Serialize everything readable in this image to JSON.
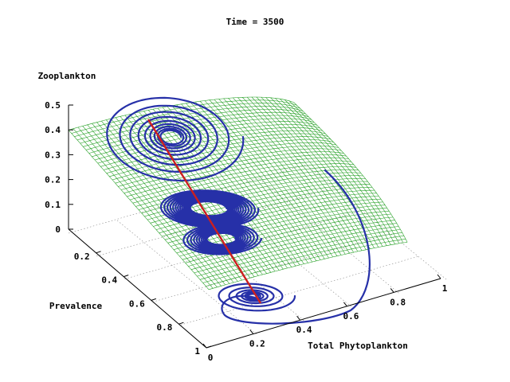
{
  "chart_data": {
    "type": "surface3d",
    "title": "Time = 3500",
    "axes": {
      "x": {
        "label": "Total Phytoplankton",
        "range": [
          0,
          1
        ],
        "ticks": [
          "0",
          "0.2",
          "0.4",
          "0.6",
          "0.8",
          "1"
        ]
      },
      "y": {
        "label": "Prevalence",
        "range": [
          0,
          1
        ],
        "ticks": [
          "0.2",
          "0.4",
          "0.6",
          "0.8",
          "1"
        ]
      },
      "z": {
        "label": "Zooplankton",
        "range": [
          0,
          0.5
        ],
        "ticks": [
          "0",
          "0.1",
          "0.2",
          "0.3",
          "0.4",
          "0.5"
        ]
      }
    },
    "grid": true,
    "series": [
      {
        "kind": "surface",
        "color": "#1a9b1a"
      },
      {
        "kind": "trajectory",
        "color": "#2630a8"
      },
      {
        "kind": "equilibrium-line",
        "color": "#cc1f1f"
      }
    ]
  }
}
